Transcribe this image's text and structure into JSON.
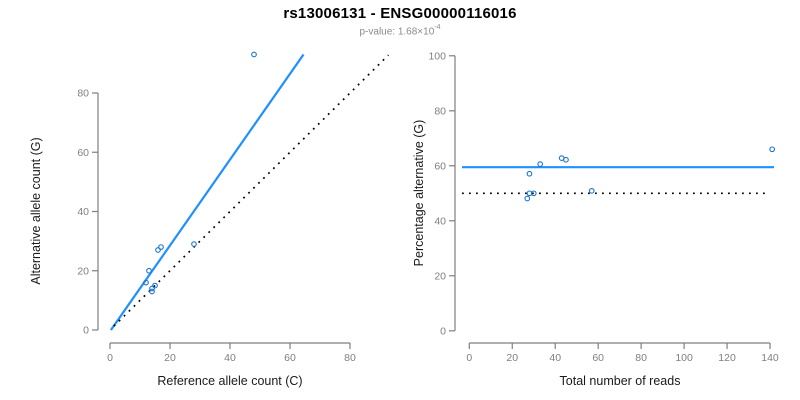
{
  "header": {
    "title": "rs13006131 - ENSG00000116016",
    "pvalue_prefix": "p-value: 1.68×10",
    "pvalue_exponent": "-4"
  },
  "colors": {
    "fit_line_blue": "#1E90FF",
    "point_blue": "#1D74CF",
    "axis_gray": "#7F7F7F",
    "tick_label_gray": "#7F7F7F",
    "axis_label_dark": "#1A1A1A",
    "identity_black": "#000000",
    "subtitle_gray": "#8A8A8A",
    "background": "#FFFFFF"
  },
  "chart_data": [
    {
      "type": "scatter",
      "panel": "left",
      "xlabel": "Reference allele count (C)",
      "ylabel": "Alternative allele count (G)",
      "xticks": [
        0,
        20,
        40,
        60,
        80
      ],
      "yticks": [
        0,
        20,
        40,
        60,
        80
      ],
      "xlim": [
        0,
        93
      ],
      "ylim": [
        0,
        95
      ],
      "grid": false,
      "legend": false,
      "points": [
        [
          12,
          16
        ],
        [
          13,
          20
        ],
        [
          14,
          13
        ],
        [
          14,
          14
        ],
        [
          15,
          15
        ],
        [
          16,
          27
        ],
        [
          17,
          28
        ],
        [
          28,
          29
        ],
        [
          48,
          93
        ]
      ],
      "lines": [
        {
          "name": "fit-line",
          "x1": 0.3,
          "y1": 0,
          "x2": 64.5,
          "y2": 93,
          "dashed": false,
          "color_key": "fit_line_blue"
        },
        {
          "name": "identity-line",
          "x1": 1.3,
          "y1": 1.3,
          "x2": 92.8,
          "y2": 92.8,
          "dashed": true,
          "color_key": "identity_black"
        }
      ]
    },
    {
      "type": "scatter",
      "panel": "right",
      "xlabel": "Total number of reads",
      "ylabel": "Percentage alternative (G)",
      "xticks": [
        0,
        20,
        40,
        60,
        80,
        100,
        120,
        140
      ],
      "yticks": [
        0,
        20,
        40,
        60,
        80,
        100
      ],
      "xlim": [
        0,
        146
      ],
      "ylim": [
        0,
        100
      ],
      "grid": false,
      "legend": false,
      "points": [
        [
          27,
          48.1
        ],
        [
          28,
          50
        ],
        [
          28,
          57.1
        ],
        [
          30,
          50
        ],
        [
          33,
          60.6
        ],
        [
          43,
          62.8
        ],
        [
          45,
          62.2
        ],
        [
          57,
          50.9
        ],
        [
          141,
          66
        ]
      ],
      "hlines": [
        {
          "name": "mean-percentage-line",
          "y": 59.5,
          "dashed": false,
          "color_key": "fit_line_blue"
        },
        {
          "name": "null-50-percent-line",
          "y": 50,
          "dashed": true,
          "color_key": "identity_black"
        }
      ]
    }
  ]
}
